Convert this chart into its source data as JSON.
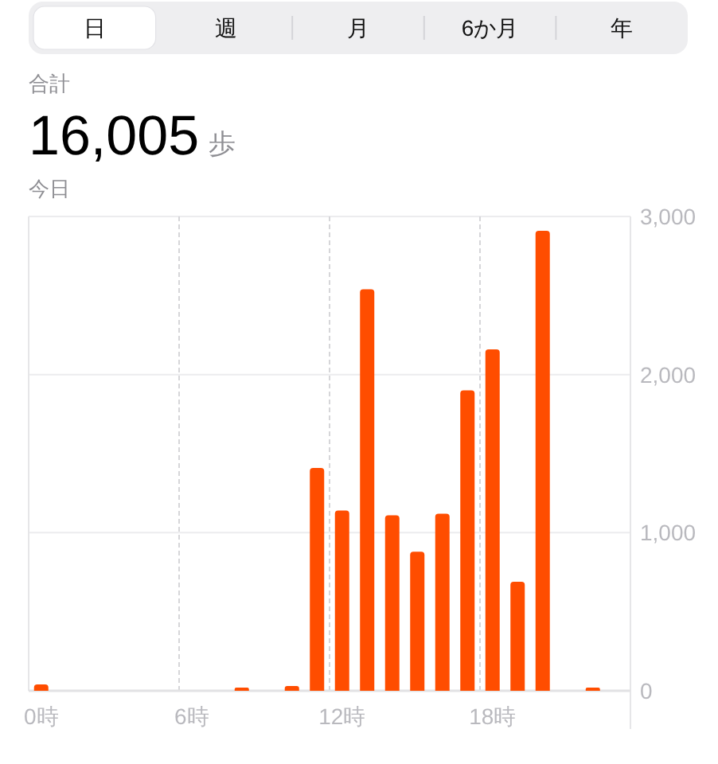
{
  "chart_data": {
    "type": "bar",
    "title": "合計",
    "subtitle": "今日",
    "annotations": [
      "日",
      "週",
      "月",
      "6か月",
      "年",
      "16,005",
      "歩"
    ],
    "categories": [
      "0時",
      null,
      null,
      null,
      null,
      null,
      "6時",
      null,
      null,
      null,
      null,
      null,
      "12時",
      null,
      null,
      null,
      null,
      null,
      "18時",
      null,
      null,
      null,
      null,
      null
    ],
    "values": [
      40,
      null,
      null,
      null,
      null,
      null,
      null,
      null,
      20,
      null,
      30,
      1410,
      1140,
      2540,
      1110,
      880,
      1120,
      1900,
      2160,
      690,
      2910,
      null,
      20,
      null
    ],
    "color": "#ff4d00",
    "ylim": [
      0,
      3000
    ],
    "yticks": [
      0,
      {
        "value": 1000,
        "label": "1,000"
      },
      {
        "value": 2000,
        "label": "2,000"
      },
      {
        "value": 3000,
        "label": "3,000"
      }
    ],
    "grid": true
  }
}
